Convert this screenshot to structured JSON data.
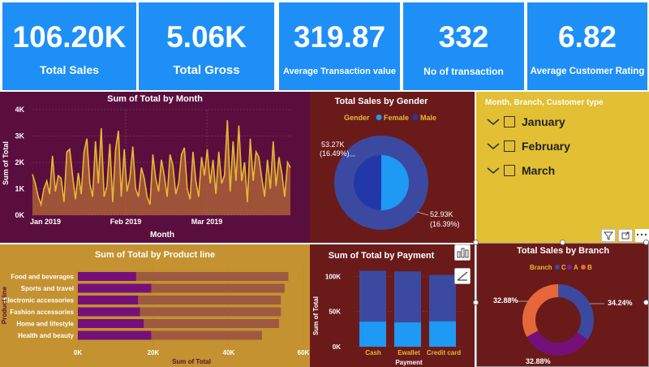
{
  "kpis": [
    {
      "value": "106.20K",
      "label": "Total Sales"
    },
    {
      "value": "5.06K",
      "label": "Total Gross"
    },
    {
      "value": "319.87",
      "label": "Average Transaction value"
    },
    {
      "value": "332",
      "label": "No of transaction"
    },
    {
      "value": "6.82",
      "label": "Average Customer Rating"
    }
  ],
  "colors": {
    "kpi_bg": "#1e8ff7",
    "month_panel": "#5a0e3e",
    "gender_panel": "#6b1a1a",
    "slicer_panel": "#e2bf33",
    "product_panel": "#c49230",
    "payment_panel": "#6b1a1a",
    "branch_panel": "#6b1a1a",
    "line_color": "#e6b933",
    "blue_dark": "#3b4aa0",
    "blue_light": "#1e9af5",
    "purple_bar": "#75107a",
    "brown_bar": "#9e5a40",
    "orange": "#e6673a"
  },
  "month_chart": {
    "title": "Sum of Total by Month",
    "ylabel": "Sum of Total",
    "xlabel": "Month",
    "yticks": [
      "0K",
      "1K",
      "2K",
      "3K",
      "4K"
    ],
    "xticks": [
      "Jan 2019",
      "Feb 2019",
      "Mar 2019"
    ]
  },
  "gender_chart": {
    "title": "Total Sales by Gender",
    "legend_title": "Gender",
    "legend": [
      "Female",
      "Male"
    ],
    "label_female_value": "53.27K",
    "label_female_pct": "(16.49%)",
    "label_male_value": "52.93K",
    "label_male_pct": "(16.39%)"
  },
  "slicer": {
    "title": "Month, Branch, Customer type",
    "items": [
      "January",
      "February",
      "March"
    ]
  },
  "product_chart": {
    "title": "Sum of Total by Product line",
    "ylabel": "Product line",
    "xlabel": "Sum of Total",
    "xticks": [
      "0K",
      "20K",
      "40K",
      "60K"
    ]
  },
  "payment_chart": {
    "title": "Sum of Total by Payment",
    "ylabel": "Sum of Total",
    "xlabel": "Payment",
    "yticks": [
      "0K",
      "50K",
      "100K"
    ]
  },
  "branch_chart": {
    "title": "Total Sales by Branch",
    "legend_title": "Branch",
    "legend": [
      "C",
      "A",
      "B"
    ],
    "label_right": "34.24%",
    "label_left": "32.88%",
    "label_bottom": "32.88%"
  },
  "chart_data": [
    {
      "type": "area",
      "title": "Sum of Total by Month",
      "xlabel": "Month",
      "ylabel": "Sum of Total",
      "ylim": [
        0,
        4000
      ],
      "x_start": "Jan 2019",
      "x_end": "Mar 2019",
      "values": [
        1550,
        1200,
        700,
        400,
        1000,
        1300,
        800,
        2250,
        900,
        1500,
        1400,
        500,
        2400,
        2500,
        1500,
        600,
        1600,
        800,
        2400,
        2900,
        1200,
        700,
        2800,
        1200,
        3300,
        700,
        1100,
        2700,
        500,
        2500,
        3200,
        700,
        2500,
        900,
        1400,
        2600,
        1000,
        700,
        1800,
        1400,
        700,
        400,
        2300,
        1400,
        900,
        2100,
        1500,
        700,
        2300,
        1900,
        800,
        1200,
        2300,
        2550,
        1000,
        600,
        2400,
        1300,
        700,
        2200,
        1500,
        2500,
        1200,
        2100,
        800,
        2400,
        1200,
        1500,
        3600,
        900,
        2800,
        1300,
        3400,
        1300,
        2000,
        500,
        2900,
        1300,
        2400,
        2200,
        1400,
        700,
        2100,
        1000,
        2800,
        1100,
        2200,
        1600,
        700,
        2000,
        1800
      ]
    },
    {
      "type": "pie",
      "title": "Total Sales by Gender",
      "categories": [
        "Female",
        "Male"
      ],
      "values": [
        53270,
        52930
      ],
      "percent_labels": [
        "16.49%",
        "16.39%"
      ]
    },
    {
      "type": "bar",
      "title": "Sum of Total by Product line",
      "xlabel": "Sum of Total",
      "ylabel": "Product line",
      "xlim": [
        0,
        60000
      ],
      "categories": [
        "Food and beverages",
        "Sports and travel",
        "Electronic accessories",
        "Fashion accessories",
        "Home and lifestyle",
        "Health and beauty"
      ],
      "series": [
        {
          "values": [
            15500,
            19500,
            16000,
            16500,
            17500,
            19500
          ]
        },
        {
          "values": [
            56000,
            55000,
            54000,
            54000,
            53500,
            49000
          ]
        }
      ]
    },
    {
      "type": "bar",
      "title": "Sum of Total by Payment",
      "xlabel": "Payment",
      "ylabel": "Sum of Total",
      "ylim": [
        0,
        120000
      ],
      "categories": [
        "Cash",
        "Ewallet",
        "Credit card"
      ],
      "series": [
        {
          "values": [
            35500,
            34500,
            36000
          ]
        },
        {
          "values": [
            108000,
            107000,
            102000
          ]
        }
      ]
    },
    {
      "type": "pie",
      "title": "Total Sales by Branch",
      "categories": [
        "C",
        "A",
        "B"
      ],
      "values": [
        34.24,
        32.88,
        32.88
      ]
    }
  ]
}
